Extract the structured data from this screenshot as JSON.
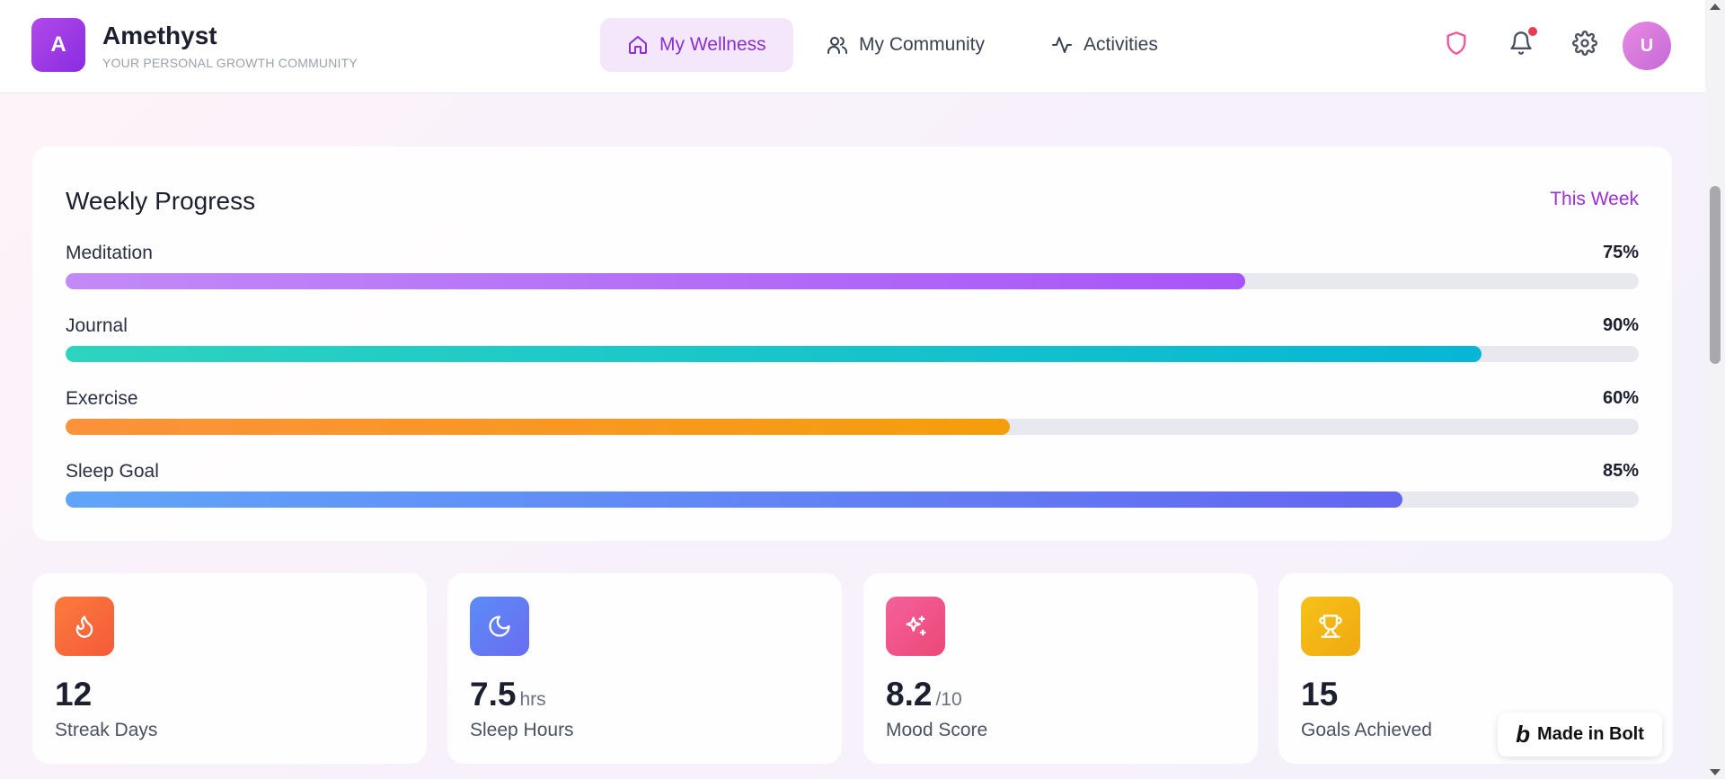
{
  "header": {
    "logo_letter": "A",
    "brand_name": "Amethyst",
    "brand_tagline": "YOUR PERSONAL GROWTH COMMUNITY",
    "nav": [
      {
        "label": "My Wellness",
        "icon": "home-icon",
        "active": true
      },
      {
        "label": "My Community",
        "icon": "users-icon",
        "active": false
      },
      {
        "label": "Activities",
        "icon": "activity-icon",
        "active": false
      }
    ],
    "actions": [
      "shield-icon",
      "bell-icon",
      "gear-icon"
    ],
    "notification_dot": true,
    "avatar_letter": "U"
  },
  "progress": {
    "title": "Weekly Progress",
    "period": "This Week",
    "items": [
      {
        "label": "Meditation",
        "value_text": "75%",
        "fraction": 0.75,
        "colors": [
          "#c28af6",
          "#a855f7"
        ]
      },
      {
        "label": "Journal",
        "value_text": "90%",
        "fraction": 0.9,
        "colors": [
          "#2dd4bf",
          "#06b6d4"
        ]
      },
      {
        "label": "Exercise",
        "value_text": "60%",
        "fraction": 0.6,
        "colors": [
          "#fb923c",
          "#f59e0b"
        ]
      },
      {
        "label": "Sleep Goal",
        "value_text": "85%",
        "fraction": 0.85,
        "colors": [
          "#60a5fa",
          "#6366f1"
        ]
      }
    ]
  },
  "stats": [
    {
      "value": "12",
      "unit": "",
      "label": "Streak Days",
      "icon": "flame-icon",
      "colors": [
        "#fb7b3c",
        "#f55a3a"
      ]
    },
    {
      "value": "7.5",
      "unit": "hrs",
      "label": "Sleep Hours",
      "icon": "moon-icon",
      "colors": [
        "#5b8cf6",
        "#6a6cf0"
      ]
    },
    {
      "value": "8.2",
      "unit": "/10",
      "label": "Mood Score",
      "icon": "sparkles-icon",
      "colors": [
        "#f4619a",
        "#ec4878"
      ]
    },
    {
      "value": "15",
      "unit": "",
      "label": "Goals Achieved",
      "icon": "trophy-icon",
      "colors": [
        "#f6c21a",
        "#efa90f"
      ]
    }
  ],
  "bolt_badge": {
    "label": "Made in Bolt"
  },
  "colors": {
    "accent": "#9a30d6",
    "active_tab_bg": "#f4e6fb",
    "track": "#e8e9ee"
  }
}
